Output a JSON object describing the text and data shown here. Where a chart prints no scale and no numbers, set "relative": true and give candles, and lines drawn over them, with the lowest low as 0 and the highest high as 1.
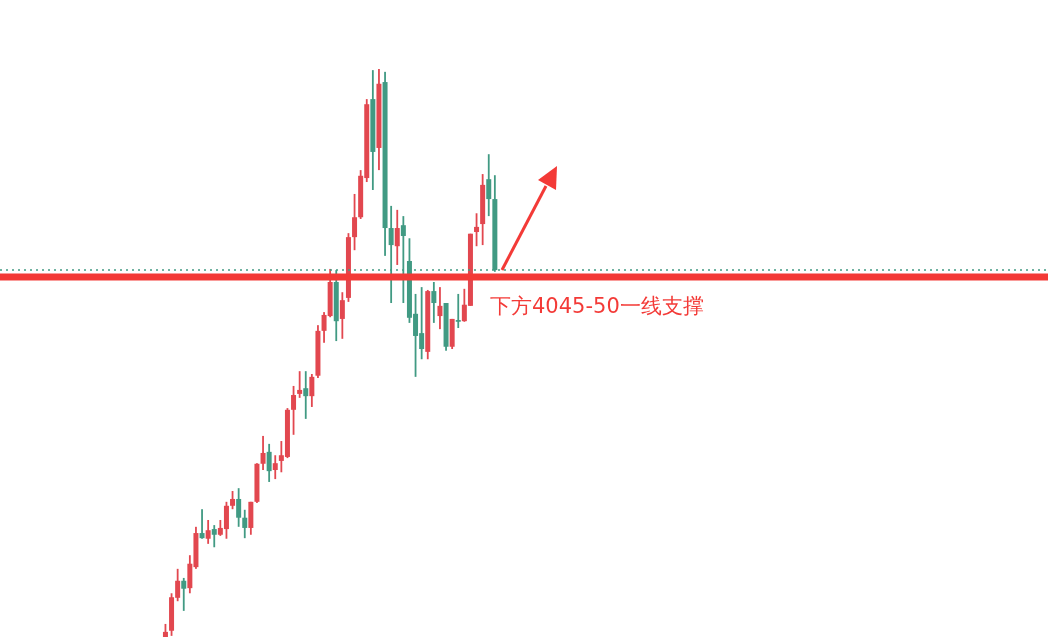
{
  "chart_data": {
    "type": "candlestick",
    "relative": true,
    "categories": [
      null,
      null,
      null,
      null,
      null,
      null,
      null,
      null,
      null,
      null,
      null,
      null,
      null,
      null,
      null,
      null,
      null,
      null,
      null,
      null,
      null,
      null,
      null,
      null,
      null,
      null,
      null,
      null,
      null,
      null,
      null,
      null,
      null,
      null,
      null,
      null,
      null,
      null,
      null,
      null,
      null,
      null,
      null,
      null,
      null,
      null,
      null,
      null,
      null,
      null,
      null,
      null,
      null,
      null,
      null
    ],
    "ohlc": [
      [
        0,
        0.023,
        0,
        0.009
      ],
      [
        0.011,
        0.077,
        0.002,
        0.07
      ],
      [
        0.069,
        0.12,
        0.063,
        0.099
      ],
      [
        0.099,
        0.104,
        0.046,
        0.085
      ],
      [
        0.086,
        0.144,
        0.077,
        0.129
      ],
      [
        0.123,
        0.194,
        0.12,
        0.183
      ],
      [
        0.183,
        0.225,
        0.173,
        0.174
      ],
      [
        0.173,
        0.206,
        0.164,
        0.188
      ],
      [
        0.19,
        0.197,
        0.158,
        0.18
      ],
      [
        0.18,
        0.206,
        0.178,
        0.192
      ],
      [
        0.19,
        0.238,
        0.173,
        0.231
      ],
      [
        0.231,
        0.257,
        0.225,
        0.243
      ],
      [
        0.243,
        0.262,
        0.194,
        0.21
      ],
      [
        0.21,
        0.224,
        0.174,
        0.192
      ],
      [
        0.192,
        0.238,
        0.18,
        0.238
      ],
      [
        0.238,
        0.306,
        0.236,
        0.305
      ],
      [
        0.305,
        0.354,
        0.294,
        0.324
      ],
      [
        0.326,
        0.34,
        0.273,
        0.292
      ],
      [
        0.294,
        0.32,
        0.278,
        0.306
      ],
      [
        0.31,
        0.345,
        0.29,
        0.32
      ],
      [
        0.317,
        0.403,
        0.315,
        0.4
      ],
      [
        0.4,
        0.442,
        0.356,
        0.426
      ],
      [
        0.428,
        0.468,
        0.421,
        0.435
      ],
      [
        0.438,
        0.468,
        0.384,
        0.424
      ],
      [
        0.424,
        0.463,
        0.405,
        0.458
      ],
      [
        0.46,
        0.549,
        0.456,
        0.539
      ],
      [
        0.539,
        0.572,
        0.518,
        0.567
      ],
      [
        0.565,
        0.648,
        0.563,
        0.625
      ],
      [
        0.625,
        0.646,
        0.521,
        0.556
      ],
      [
        0.56,
        0.607,
        0.525,
        0.593
      ],
      [
        0.597,
        0.711,
        0.59,
        0.704
      ],
      [
        0.704,
        0.78,
        0.681,
        0.739
      ],
      [
        0.739,
        0.822,
        0.736,
        0.812
      ],
      [
        0.808,
        0.947,
        0.801,
        0.938
      ],
      [
        0.947,
        0.998,
        0.787,
        0.854
      ],
      [
        0.861,
        1,
        0.822,
        0.974
      ],
      [
        0.977,
        0.995,
        0.671,
        0.72
      ],
      [
        0.72,
        0.759,
        0.588,
        0.69
      ],
      [
        0.688,
        0.752,
        0.655,
        0.72
      ],
      [
        0.725,
        0.741,
        0.588,
        0.706
      ],
      [
        0.662,
        0.702,
        0.553,
        0.562
      ],
      [
        0.569,
        0.604,
        0.458,
        0.53
      ],
      [
        0.535,
        0.616,
        0.489,
        0.507
      ],
      [
        0.502,
        0.611,
        0.489,
        0.609
      ],
      [
        0.609,
        0.625,
        0.553,
        0.588
      ],
      [
        0.565,
        0.616,
        0.542,
        0.583
      ],
      [
        0.588,
        0.588,
        0.504,
        0.511
      ],
      [
        0.511,
        0.56,
        0.507,
        0.56
      ],
      [
        0.558,
        0.604,
        0.544,
        0.555
      ],
      [
        0.556,
        0.613,
        0.555,
        0.585
      ],
      [
        0.583,
        0.71,
        0.583,
        0.71
      ],
      [
        0.713,
        0.746,
        0.688,
        0.722
      ],
      [
        0.727,
        0.815,
        0.69,
        0.796
      ],
      [
        0.806,
        0.85,
        0.741,
        0.771
      ],
      [
        0.771,
        0.813,
        0.643,
        0.646
      ]
    ],
    "colors": [
      "#e2474f",
      "#e2474f",
      "#e2474f",
      "#419a83",
      "#e2474f",
      "#e2474f",
      "#419a83",
      "#e2474f",
      "#419a83",
      "#e2474f",
      "#e2474f",
      "#e2474f",
      "#419a83",
      "#419a83",
      "#e2474f",
      "#e2474f",
      "#e2474f",
      "#419a83",
      "#e2474f",
      "#e2474f",
      "#e2474f",
      "#e2474f",
      "#e2474f",
      "#419a83",
      "#e2474f",
      "#e2474f",
      "#e2474f",
      "#e2474f",
      "#419a83",
      "#e2474f",
      "#e2474f",
      "#e2474f",
      "#e2474f",
      "#e2474f",
      "#419a83",
      "#e2474f",
      "#419a83",
      "#419a83",
      "#e2474f",
      "#419a83",
      "#419a83",
      "#419a83",
      "#419a83",
      "#e2474f",
      "#419a83",
      "#e2474f",
      "#419a83",
      "#e2474f",
      "#419a83",
      "#e2474f",
      "#e2474f",
      "#e2474f",
      "#e2474f",
      "#419a83",
      "#419a83"
    ],
    "ref_lines": [
      {
        "axis": "y",
        "value": 0.646,
        "color": "#419a83",
        "line_style": "dotted"
      },
      {
        "axis": "y",
        "value": 0.634,
        "color": "#f33a37",
        "line_style": "solid",
        "label": "下方4045-50一线支撑"
      }
    ]
  }
}
